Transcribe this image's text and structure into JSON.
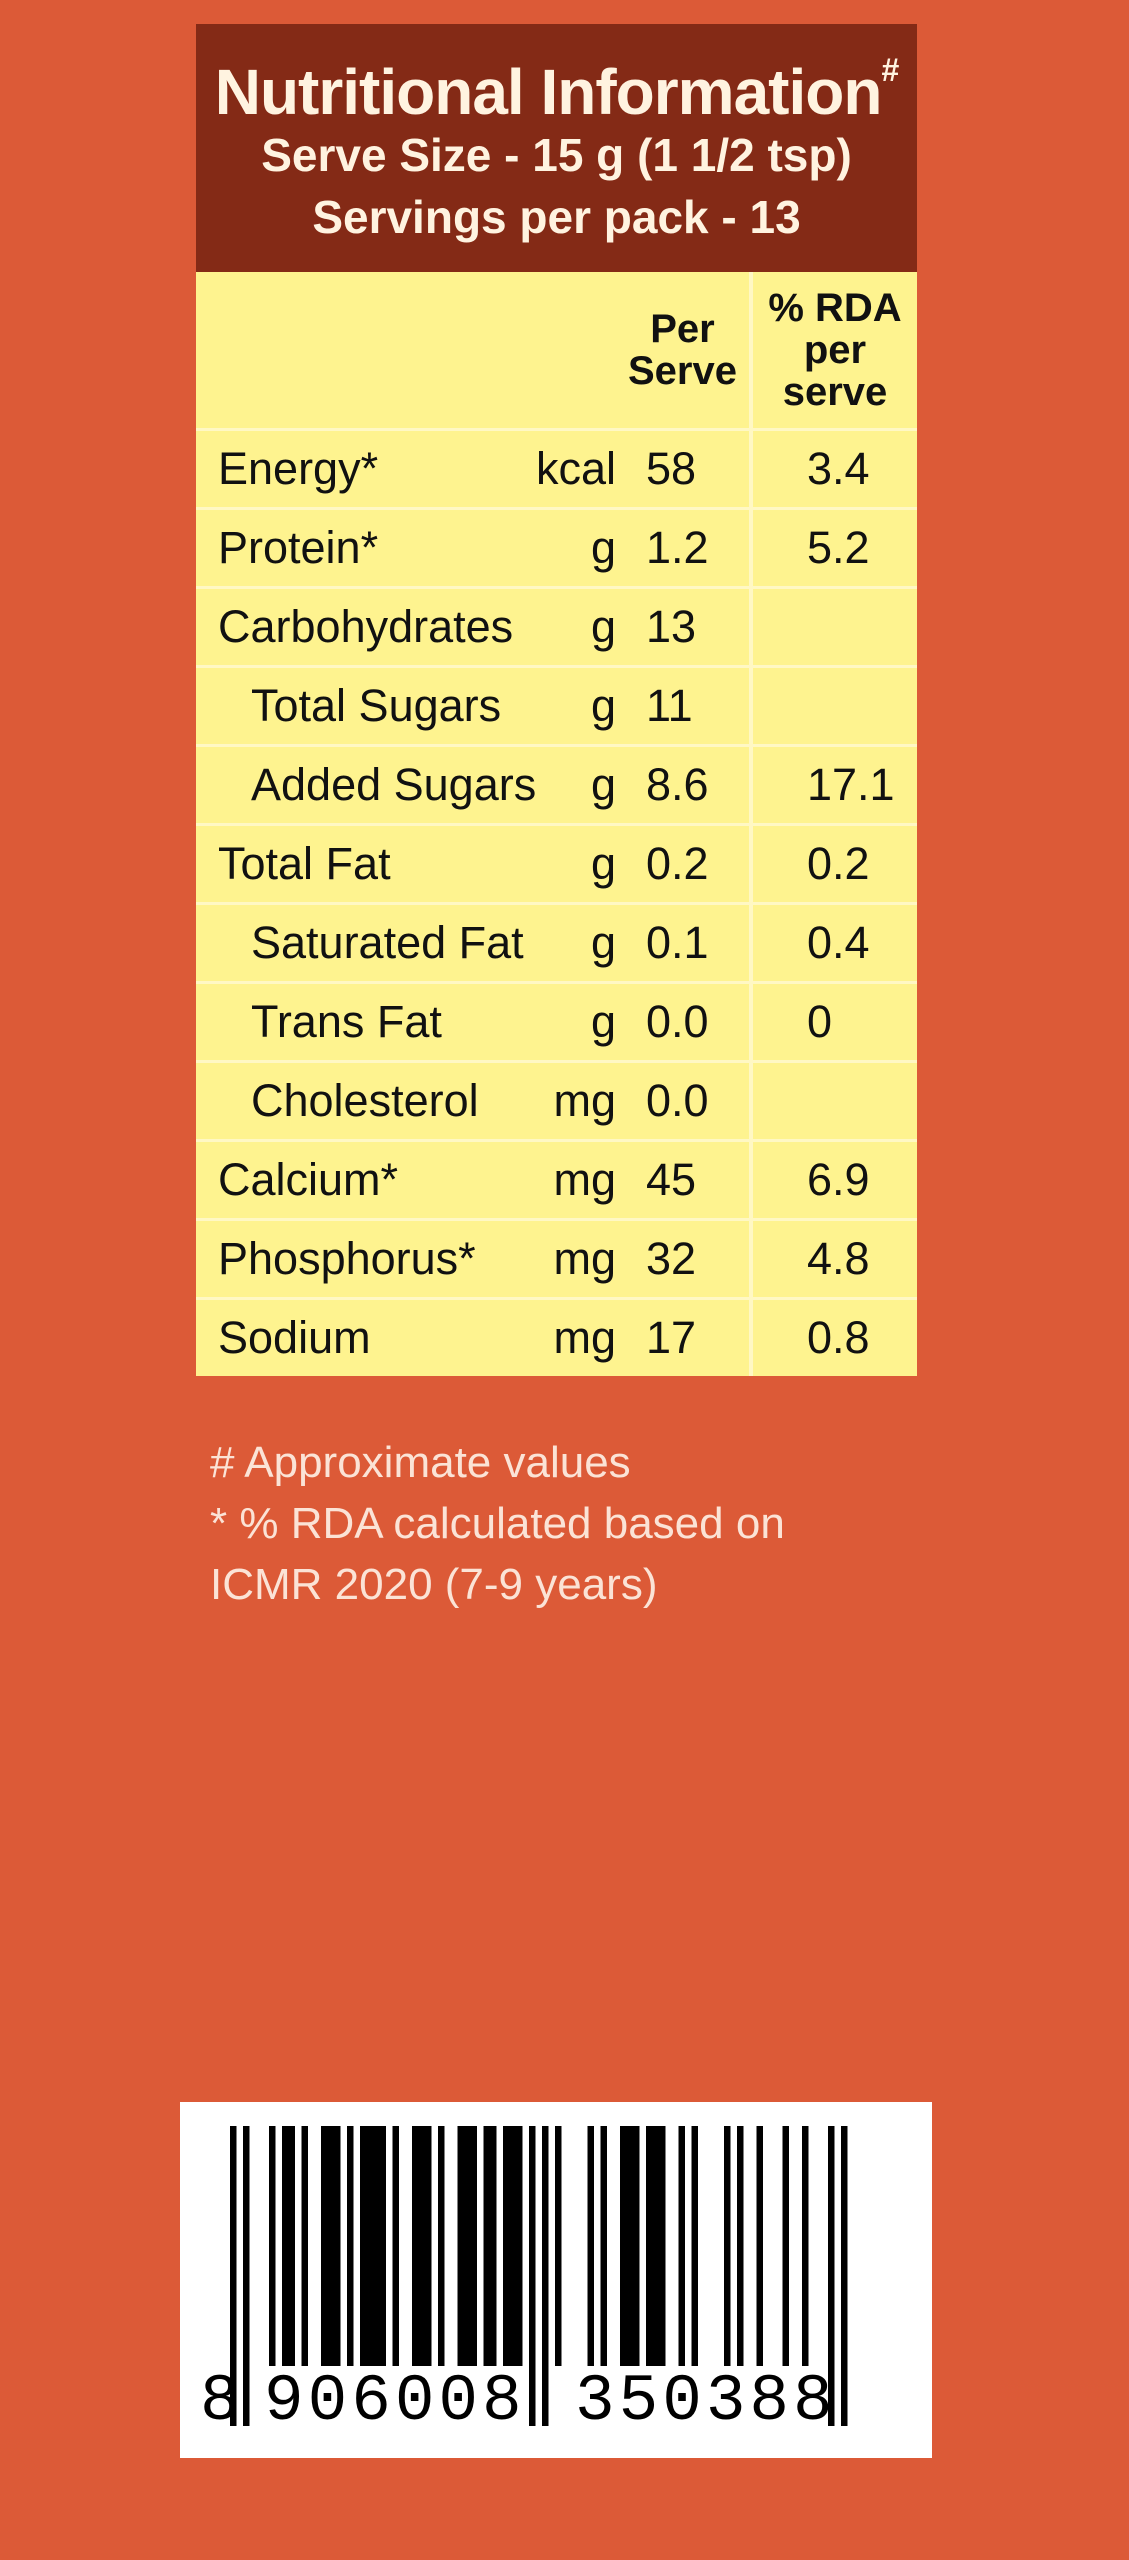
{
  "header": {
    "title": "Nutritional Information",
    "title_mark": "#",
    "serve_size": "Serve Size - 15 g (1 1/2 tsp)",
    "servings": "Servings per pack - 13"
  },
  "table": {
    "col_per_serve_1": "Per",
    "col_per_serve_2": "Serve",
    "col_rda_1": "% RDA",
    "col_rda_2": "per",
    "col_rda_3": "serve",
    "rows": [
      {
        "name": "Energy*",
        "unit": "kcal",
        "value": "58",
        "rda": "3.4"
      },
      {
        "name": "Protein*",
        "unit": "g",
        "value": "1.2",
        "rda": "5.2"
      },
      {
        "name": "Carbohydrates",
        "unit": "g",
        "value": "13",
        "rda": ""
      },
      {
        "name": "Total Sugars",
        "unit": "g",
        "value": "11",
        "rda": ""
      },
      {
        "name": "Added Sugars",
        "unit": "g",
        "value": "8.6",
        "rda": "17.1"
      },
      {
        "name": "Total Fat",
        "unit": "g",
        "value": "0.2",
        "rda": "0.2"
      },
      {
        "name": "Saturated Fat",
        "unit": "g",
        "value": "0.1",
        "rda": "0.4"
      },
      {
        "name": "Trans Fat",
        "unit": "g",
        "value": "0.0",
        "rda": "0"
      },
      {
        "name": "Cholesterol",
        "unit": "mg",
        "value": "0.0",
        "rda": ""
      },
      {
        "name": "Calcium*",
        "unit": "mg",
        "value": "45",
        "rda": "6.9"
      },
      {
        "name": "Phosphorus*",
        "unit": "mg",
        "value": "32",
        "rda": "4.8"
      },
      {
        "name": "Sodium",
        "unit": "mg",
        "value": "17",
        "rda": "0.8"
      }
    ]
  },
  "footnotes": {
    "line1": "# Approximate values",
    "line2": "* % RDA calculated based on",
    "line3": "ICMR 2020 (7-9 years)"
  },
  "barcode": {
    "d1": "8",
    "group1": "906008",
    "group2": "350388"
  },
  "colors": {
    "background": "#dc5a37",
    "header": "#842a16",
    "table": "#fef38f"
  }
}
